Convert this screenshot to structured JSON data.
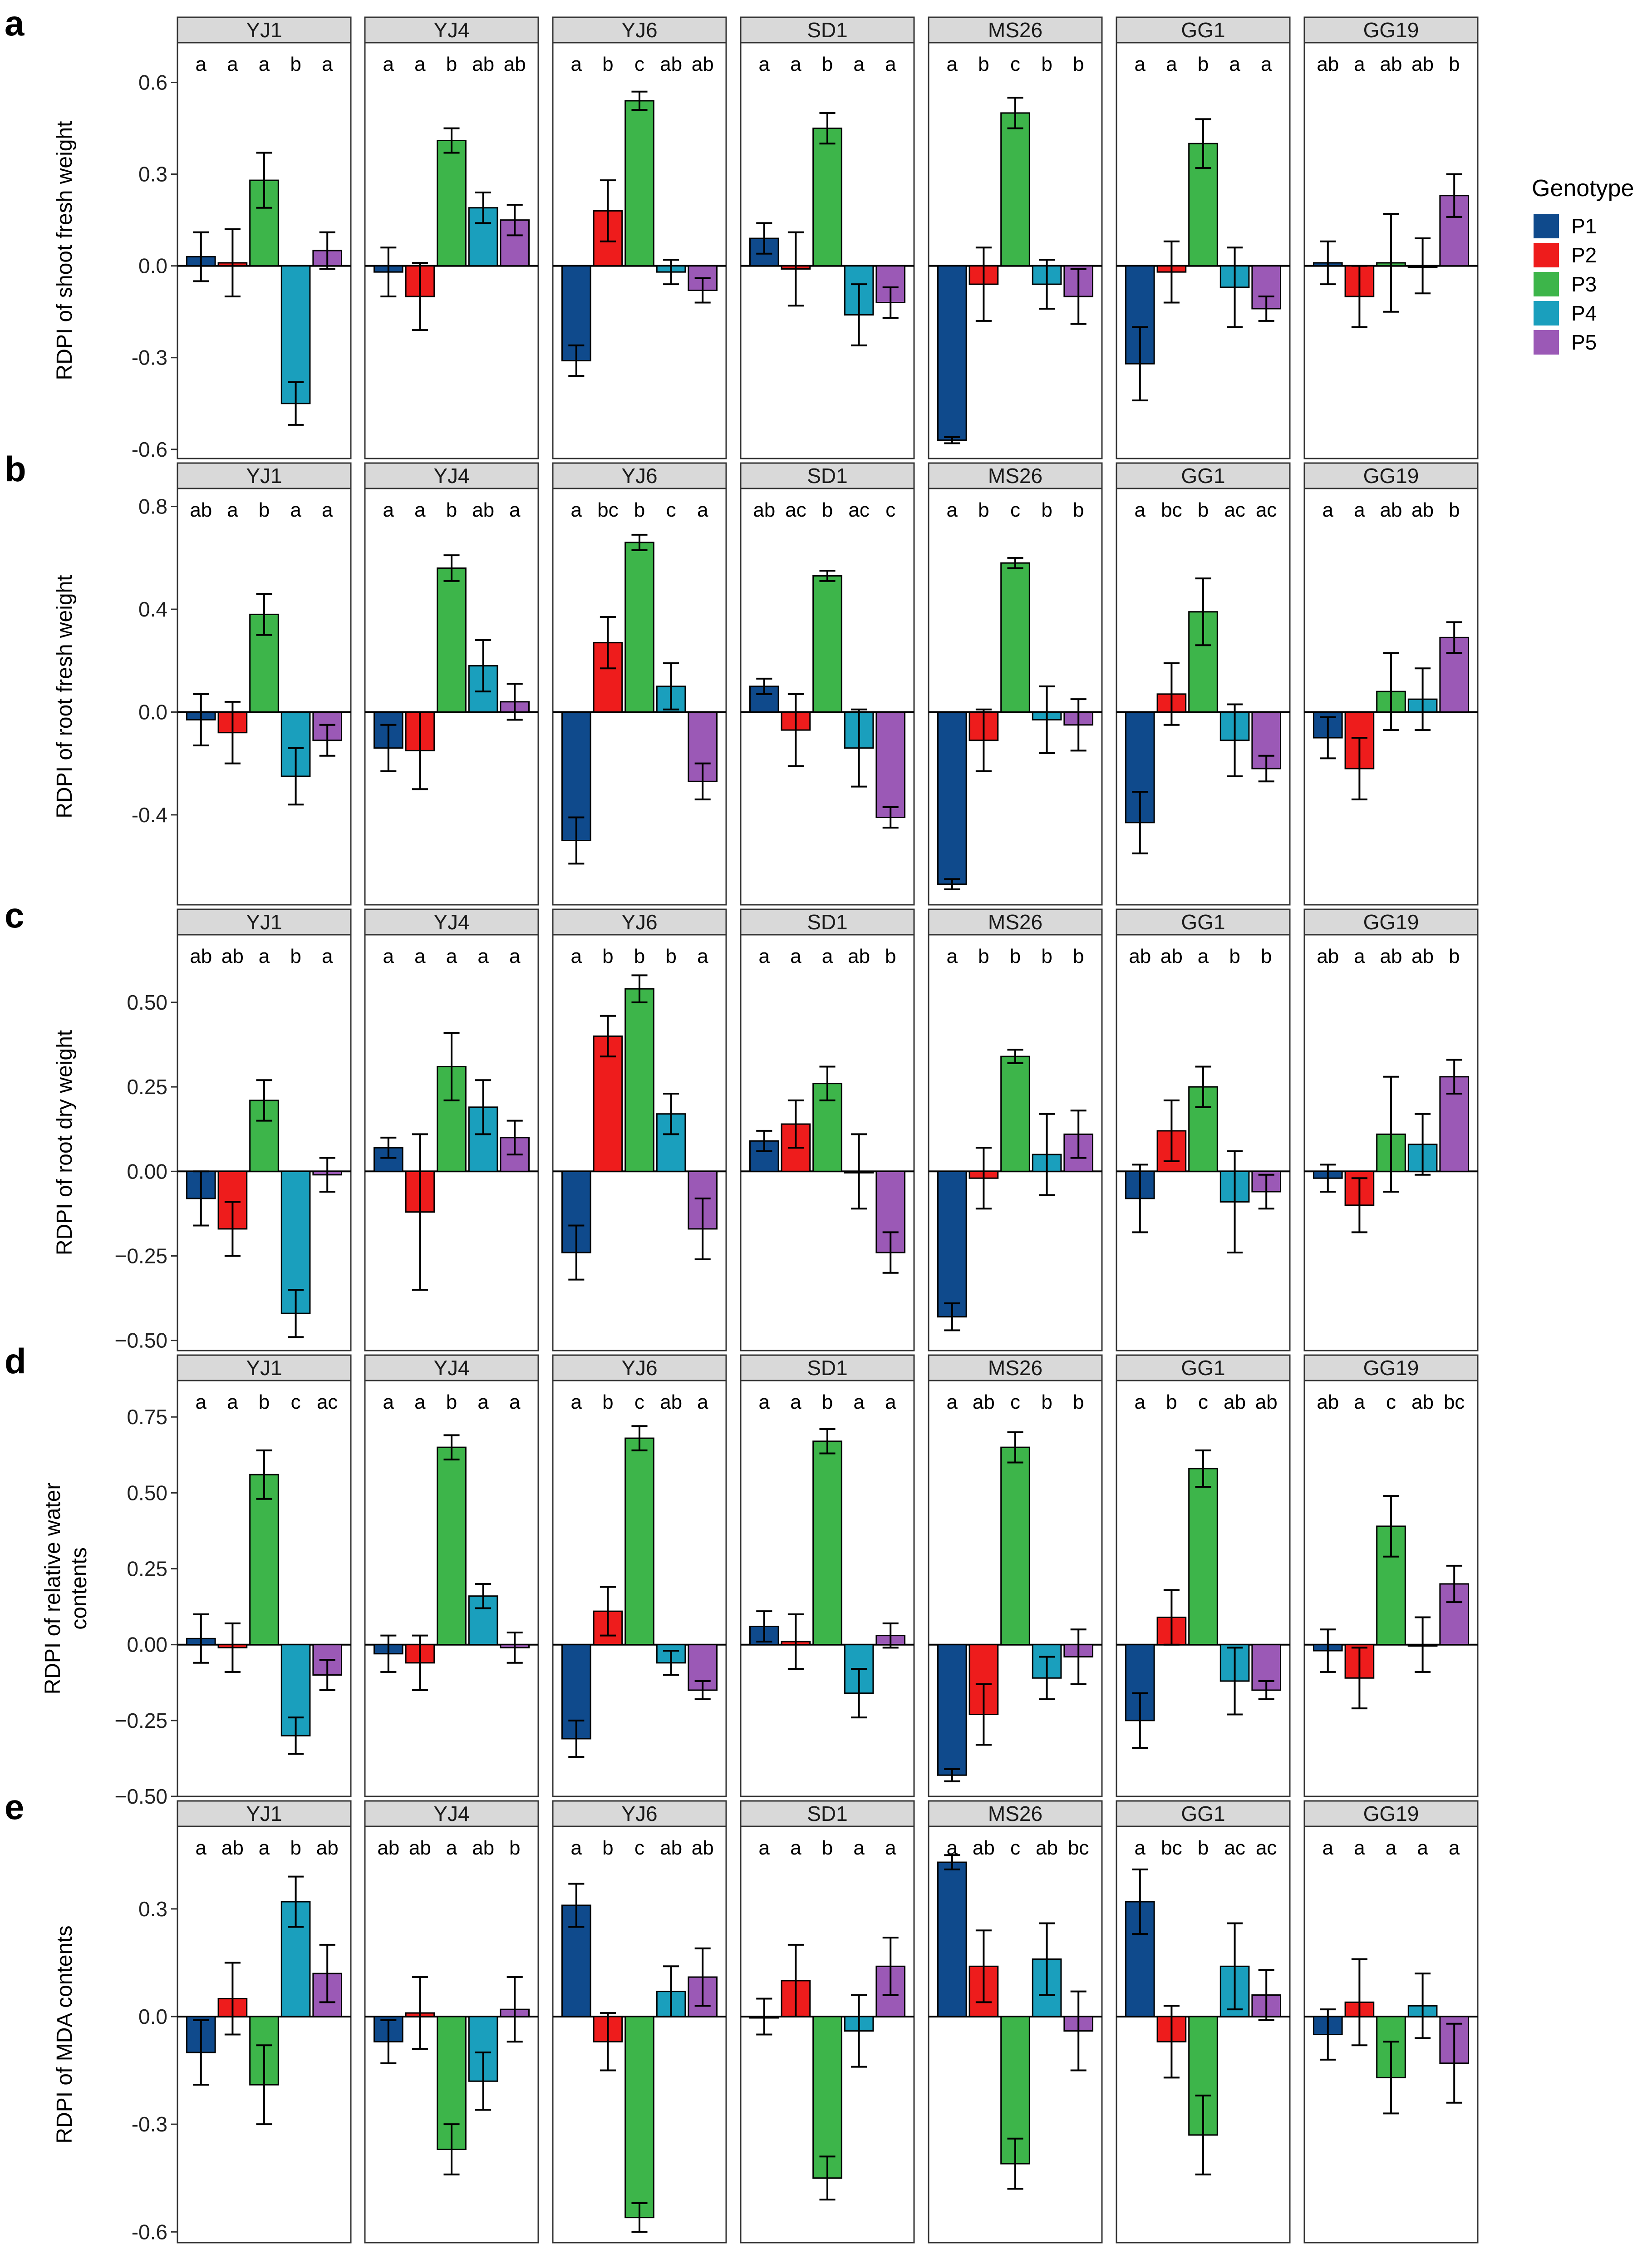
{
  "chart_data": {
    "type": "bar",
    "series_names": [
      "P1",
      "P2",
      "P3",
      "P4",
      "P5"
    ],
    "genotypes": [
      "YJ1",
      "YJ4",
      "YJ6",
      "SD1",
      "MS26",
      "GG1",
      "GG19"
    ],
    "legend": {
      "title": "Genotype",
      "position": "right",
      "entries": [
        {
          "label": "P1",
          "color": "#0f4a8c"
        },
        {
          "label": "P2",
          "color": "#ee1c1c"
        },
        {
          "label": "P3",
          "color": "#3db54a"
        },
        {
          "label": "P4",
          "color": "#1a9fbd"
        },
        {
          "label": "P5",
          "color": "#9b59b6"
        }
      ]
    },
    "panels": [
      {
        "label": "a",
        "ylabel": "RDPI of shoot fresh weight",
        "ylim": [
          -0.63,
          0.73
        ],
        "yticks": [
          0.6,
          0.3,
          0.0,
          -0.3,
          -0.6
        ],
        "tick_labels": [
          "0.6",
          "0.3",
          "0.0",
          "-0.3",
          "-0.6"
        ],
        "facets": [
          {
            "name": "YJ1",
            "values": [
              0.03,
              0.01,
              0.28,
              -0.45,
              0.05
            ],
            "errors": [
              0.08,
              0.11,
              0.09,
              0.07,
              0.06
            ],
            "letters": [
              "a",
              "a",
              "a",
              "b",
              "a"
            ]
          },
          {
            "name": "YJ4",
            "values": [
              -0.02,
              -0.1,
              0.41,
              0.19,
              0.15
            ],
            "errors": [
              0.08,
              0.11,
              0.04,
              0.05,
              0.05
            ],
            "letters": [
              "a",
              "a",
              "b",
              "ab",
              "ab"
            ]
          },
          {
            "name": "YJ6",
            "values": [
              -0.31,
              0.18,
              0.54,
              -0.02,
              -0.08
            ],
            "errors": [
              0.05,
              0.1,
              0.03,
              0.04,
              0.04
            ],
            "letters": [
              "a",
              "b",
              "c",
              "ab",
              "ab"
            ]
          },
          {
            "name": "SD1",
            "values": [
              0.09,
              -0.01,
              0.45,
              -0.16,
              -0.12
            ],
            "errors": [
              0.05,
              0.12,
              0.05,
              0.1,
              0.05
            ],
            "letters": [
              "a",
              "a",
              "b",
              "a",
              "a"
            ]
          },
          {
            "name": "MS26",
            "values": [
              -0.57,
              -0.06,
              0.5,
              -0.06,
              -0.1
            ],
            "errors": [
              0.01,
              0.12,
              0.05,
              0.08,
              0.09
            ],
            "letters": [
              "a",
              "b",
              "c",
              "b",
              "b"
            ]
          },
          {
            "name": "GG1",
            "values": [
              -0.32,
              -0.02,
              0.4,
              -0.07,
              -0.14
            ],
            "errors": [
              0.12,
              0.1,
              0.08,
              0.13,
              0.04
            ],
            "letters": [
              "a",
              "a",
              "b",
              "a",
              "a"
            ]
          },
          {
            "name": "GG19",
            "values": [
              0.01,
              -0.1,
              0.01,
              0.0,
              0.23
            ],
            "errors": [
              0.07,
              0.1,
              0.16,
              0.09,
              0.07
            ],
            "letters": [
              "ab",
              "a",
              "ab",
              "ab",
              "b"
            ]
          }
        ]
      },
      {
        "label": "b",
        "ylabel": "RDPI of root fresh weight",
        "ylim": [
          -0.75,
          0.87
        ],
        "yticks": [
          0.8,
          0.4,
          0.0,
          -0.4
        ],
        "tick_labels": [
          "0.8",
          "0.4",
          "0.0",
          "-0.4"
        ],
        "facets": [
          {
            "name": "YJ1",
            "values": [
              -0.03,
              -0.08,
              0.38,
              -0.25,
              -0.11
            ],
            "errors": [
              0.1,
              0.12,
              0.08,
              0.11,
              0.06
            ],
            "letters": [
              "ab",
              "a",
              "b",
              "a",
              "a"
            ]
          },
          {
            "name": "YJ4",
            "values": [
              -0.14,
              -0.15,
              0.56,
              0.18,
              0.04
            ],
            "errors": [
              0.09,
              0.15,
              0.05,
              0.1,
              0.07
            ],
            "letters": [
              "a",
              "a",
              "b",
              "ab",
              "a"
            ]
          },
          {
            "name": "YJ6",
            "values": [
              -0.5,
              0.27,
              0.66,
              0.1,
              -0.27
            ],
            "errors": [
              0.09,
              0.1,
              0.03,
              0.09,
              0.07
            ],
            "letters": [
              "a",
              "bc",
              "b",
              "c",
              "a"
            ]
          },
          {
            "name": "SD1",
            "values": [
              0.1,
              -0.07,
              0.53,
              -0.14,
              -0.41
            ],
            "errors": [
              0.03,
              0.14,
              0.02,
              0.15,
              0.04
            ],
            "letters": [
              "ab",
              "ac",
              "b",
              "ac",
              "c"
            ]
          },
          {
            "name": "MS26",
            "values": [
              -0.67,
              -0.11,
              0.58,
              -0.03,
              -0.05
            ],
            "errors": [
              0.02,
              0.12,
              0.02,
              0.13,
              0.1
            ],
            "letters": [
              "a",
              "b",
              "c",
              "b",
              "b"
            ]
          },
          {
            "name": "GG1",
            "values": [
              -0.43,
              0.07,
              0.39,
              -0.11,
              -0.22
            ],
            "errors": [
              0.12,
              0.12,
              0.13,
              0.14,
              0.05
            ],
            "letters": [
              "a",
              "bc",
              "b",
              "ac",
              "ac"
            ]
          },
          {
            "name": "GG19",
            "values": [
              -0.1,
              -0.22,
              0.08,
              0.05,
              0.29
            ],
            "errors": [
              0.08,
              0.12,
              0.15,
              0.12,
              0.06
            ],
            "letters": [
              "a",
              "a",
              "ab",
              "ab",
              "b"
            ]
          }
        ]
      },
      {
        "label": "c",
        "ylabel": "RDPI of root dry weight",
        "ylim": [
          -0.53,
          0.7
        ],
        "yticks": [
          0.5,
          0.25,
          0.0,
          -0.25,
          -0.5
        ],
        "tick_labels": [
          "0.50",
          "0.25",
          "0.00",
          "−0.25",
          "−0.50"
        ],
        "facets": [
          {
            "name": "YJ1",
            "values": [
              -0.08,
              -0.17,
              0.21,
              -0.42,
              -0.01
            ],
            "errors": [
              0.08,
              0.08,
              0.06,
              0.07,
              0.05
            ],
            "letters": [
              "ab",
              "ab",
              "a",
              "b",
              "a"
            ]
          },
          {
            "name": "YJ4",
            "values": [
              0.07,
              -0.12,
              0.31,
              0.19,
              0.1
            ],
            "errors": [
              0.03,
              0.23,
              0.1,
              0.08,
              0.05
            ],
            "letters": [
              "a",
              "a",
              "a",
              "a",
              "a"
            ]
          },
          {
            "name": "YJ6",
            "values": [
              -0.24,
              0.4,
              0.54,
              0.17,
              -0.17
            ],
            "errors": [
              0.08,
              0.06,
              0.04,
              0.06,
              0.09
            ],
            "letters": [
              "a",
              "b",
              "b",
              "b",
              "a"
            ]
          },
          {
            "name": "SD1",
            "values": [
              0.09,
              0.14,
              0.26,
              0.0,
              -0.24
            ],
            "errors": [
              0.03,
              0.07,
              0.05,
              0.11,
              0.06
            ],
            "letters": [
              "a",
              "a",
              "a",
              "ab",
              "b"
            ]
          },
          {
            "name": "MS26",
            "values": [
              -0.43,
              -0.02,
              0.34,
              0.05,
              0.11
            ],
            "errors": [
              0.04,
              0.09,
              0.02,
              0.12,
              0.07
            ],
            "letters": [
              "a",
              "b",
              "b",
              "b",
              "b"
            ]
          },
          {
            "name": "GG1",
            "values": [
              -0.08,
              0.12,
              0.25,
              -0.09,
              -0.06
            ],
            "errors": [
              0.1,
              0.09,
              0.06,
              0.15,
              0.05
            ],
            "letters": [
              "ab",
              "ab",
              "a",
              "b",
              "b"
            ]
          },
          {
            "name": "GG19",
            "values": [
              -0.02,
              -0.1,
              0.11,
              0.08,
              0.28
            ],
            "errors": [
              0.04,
              0.08,
              0.17,
              0.09,
              0.05
            ],
            "letters": [
              "ab",
              "a",
              "ab",
              "ab",
              "b"
            ]
          }
        ]
      },
      {
        "label": "d",
        "ylabel": "RDPI of relative water\ncontents",
        "ylim": [
          -0.5,
          0.87
        ],
        "yticks": [
          0.75,
          0.5,
          0.25,
          0.0,
          -0.25,
          -0.5
        ],
        "tick_labels": [
          "0.75",
          "0.50",
          "0.25",
          "0.00",
          "−0.25",
          "−0.50"
        ],
        "facets": [
          {
            "name": "YJ1",
            "values": [
              0.02,
              -0.01,
              0.56,
              -0.3,
              -0.1
            ],
            "errors": [
              0.08,
              0.08,
              0.08,
              0.06,
              0.05
            ],
            "letters": [
              "a",
              "a",
              "b",
              "c",
              "ac"
            ]
          },
          {
            "name": "YJ4",
            "values": [
              -0.03,
              -0.06,
              0.65,
              0.16,
              -0.01
            ],
            "errors": [
              0.06,
              0.09,
              0.04,
              0.04,
              0.05
            ],
            "letters": [
              "a",
              "a",
              "b",
              "a",
              "a"
            ]
          },
          {
            "name": "YJ6",
            "values": [
              -0.31,
              0.11,
              0.68,
              -0.06,
              -0.15
            ],
            "errors": [
              0.06,
              0.08,
              0.04,
              0.04,
              0.03
            ],
            "letters": [
              "a",
              "b",
              "c",
              "ab",
              "a"
            ]
          },
          {
            "name": "SD1",
            "values": [
              0.06,
              0.01,
              0.67,
              -0.16,
              0.03
            ],
            "errors": [
              0.05,
              0.09,
              0.04,
              0.08,
              0.04
            ],
            "letters": [
              "a",
              "a",
              "b",
              "a",
              "a"
            ]
          },
          {
            "name": "MS26",
            "values": [
              -0.43,
              -0.23,
              0.65,
              -0.11,
              -0.04
            ],
            "errors": [
              0.02,
              0.1,
              0.05,
              0.07,
              0.09
            ],
            "letters": [
              "a",
              "ab",
              "c",
              "b",
              "b"
            ]
          },
          {
            "name": "GG1",
            "values": [
              -0.25,
              0.09,
              0.58,
              -0.12,
              -0.15
            ],
            "errors": [
              0.09,
              0.09,
              0.06,
              0.11,
              0.03
            ],
            "letters": [
              "a",
              "b",
              "c",
              "ab",
              "ab"
            ]
          },
          {
            "name": "GG19",
            "values": [
              -0.02,
              -0.11,
              0.39,
              0.0,
              0.2
            ],
            "errors": [
              0.07,
              0.1,
              0.1,
              0.09,
              0.06
            ],
            "letters": [
              "ab",
              "a",
              "c",
              "ab",
              "bc"
            ]
          }
        ]
      },
      {
        "label": "e",
        "ylabel": "RDPI of MDA contents",
        "ylim": [
          -0.63,
          0.53
        ],
        "yticks": [
          0.3,
          0.0,
          -0.3,
          -0.6
        ],
        "tick_labels": [
          "0.3",
          "0.0",
          "-0.3",
          "-0.6"
        ],
        "facets": [
          {
            "name": "YJ1",
            "values": [
              -0.1,
              0.05,
              -0.19,
              0.32,
              0.12
            ],
            "errors": [
              0.09,
              0.1,
              0.11,
              0.07,
              0.08
            ],
            "letters": [
              "a",
              "ab",
              "a",
              "b",
              "ab"
            ]
          },
          {
            "name": "YJ4",
            "values": [
              -0.07,
              0.01,
              -0.37,
              -0.18,
              0.02
            ],
            "errors": [
              0.06,
              0.1,
              0.07,
              0.08,
              0.09
            ],
            "letters": [
              "ab",
              "ab",
              "a",
              "ab",
              "b"
            ]
          },
          {
            "name": "YJ6",
            "values": [
              0.31,
              -0.07,
              -0.56,
              0.07,
              0.11
            ],
            "errors": [
              0.06,
              0.08,
              0.04,
              0.07,
              0.08
            ],
            "letters": [
              "a",
              "b",
              "c",
              "ab",
              "ab"
            ]
          },
          {
            "name": "SD1",
            "values": [
              0.0,
              0.1,
              -0.45,
              -0.04,
              0.14
            ],
            "errors": [
              0.05,
              0.1,
              0.06,
              0.1,
              0.08
            ],
            "letters": [
              "a",
              "a",
              "b",
              "a",
              "a"
            ]
          },
          {
            "name": "MS26",
            "values": [
              0.43,
              0.14,
              -0.41,
              0.16,
              -0.04
            ],
            "errors": [
              0.02,
              0.1,
              0.07,
              0.1,
              0.11
            ],
            "letters": [
              "a",
              "ab",
              "c",
              "ab",
              "bc"
            ]
          },
          {
            "name": "GG1",
            "values": [
              0.32,
              -0.07,
              -0.33,
              0.14,
              0.06
            ],
            "errors": [
              0.09,
              0.1,
              0.11,
              0.12,
              0.07
            ],
            "letters": [
              "a",
              "bc",
              "b",
              "ac",
              "ac"
            ]
          },
          {
            "name": "GG19",
            "values": [
              -0.05,
              0.04,
              -0.17,
              0.03,
              -0.13
            ],
            "errors": [
              0.07,
              0.12,
              0.1,
              0.09,
              0.11
            ],
            "letters": [
              "a",
              "a",
              "a",
              "a",
              "a"
            ]
          }
        ]
      }
    ]
  }
}
